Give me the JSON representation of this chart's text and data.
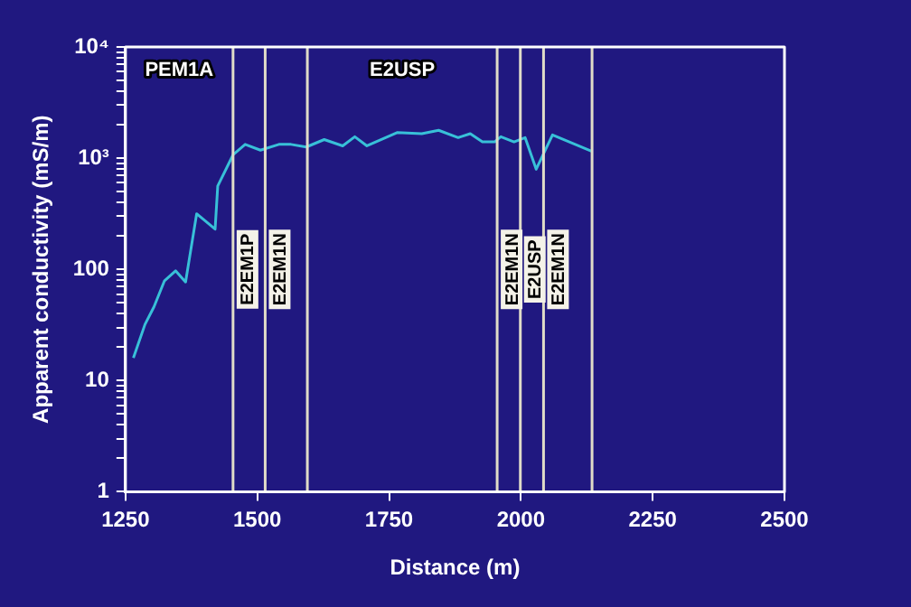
{
  "chart_data": {
    "type": "line",
    "xlabel": "Distance (m)",
    "ylabel": "Apparent conductivity (mS/m)",
    "x": [
      1265,
      1287,
      1304,
      1324,
      1345,
      1364,
      1385,
      1420,
      1425,
      1454,
      1477,
      1506,
      1541,
      1564,
      1593,
      1627,
      1662,
      1685,
      1708,
      1766,
      1812,
      1844,
      1881,
      1904,
      1927,
      1950,
      1962,
      1987,
      2008,
      2029,
      2060,
      2135
    ],
    "series": [
      {
        "color": "#38c0d8",
        "values": [
          16,
          32,
          46,
          79,
          97,
          77,
          316,
          230,
          562,
          1070,
          1330,
          1180,
          1330,
          1330,
          1260,
          1470,
          1290,
          1560,
          1290,
          1700,
          1660,
          1780,
          1530,
          1660,
          1400,
          1400,
          1560,
          1400,
          1530,
          795,
          1620,
          1150
        ]
      }
    ],
    "log": "y",
    "grid": false,
    "marker": "none",
    "line_style": "solid",
    "legend": false,
    "xlim": [
      1250,
      2500
    ],
    "xticks": [
      1250,
      1500,
      1750,
      2000,
      2250,
      2500
    ],
    "ylim": [
      1,
      10000
    ],
    "yticks": [
      1,
      {
        "value": 2,
        "label": null
      },
      {
        "value": 3,
        "label": null
      },
      {
        "value": 4,
        "label": null
      },
      {
        "value": 5,
        "label": null
      },
      {
        "value": 6,
        "label": null
      },
      {
        "value": 7,
        "label": null
      },
      {
        "value": 8,
        "label": null
      },
      {
        "value": 9,
        "label": null
      },
      10,
      {
        "value": 20,
        "label": null
      },
      {
        "value": 30,
        "label": null
      },
      {
        "value": 40,
        "label": null
      },
      {
        "value": 50,
        "label": null
      },
      {
        "value": 60,
        "label": null
      },
      {
        "value": 70,
        "label": null
      },
      {
        "value": 80,
        "label": null
      },
      {
        "value": 90,
        "label": null
      },
      100,
      {
        "value": 200,
        "label": null
      },
      {
        "value": 300,
        "label": null
      },
      {
        "value": 400,
        "label": null
      },
      {
        "value": 500,
        "label": null
      },
      {
        "value": 600,
        "label": null
      },
      {
        "value": 700,
        "label": null
      },
      {
        "value": 800,
        "label": null
      },
      {
        "value": 900,
        "label": null
      },
      {
        "value": 1000,
        "label": "10³"
      },
      {
        "value": 2000,
        "label": null
      },
      {
        "value": 3000,
        "label": null
      },
      {
        "value": 4000,
        "label": null
      },
      {
        "value": 5000,
        "label": null
      },
      {
        "value": 6000,
        "label": null
      },
      {
        "value": 7000,
        "label": null
      },
      {
        "value": 8000,
        "label": null
      },
      {
        "value": 9000,
        "label": null
      },
      {
        "value": 10000,
        "label": "10⁴"
      }
    ],
    "ref_lines": [
      {
        "axis": "x",
        "value": 1454,
        "label": "E2EM1P",
        "color": "#e0dcc8"
      },
      {
        "axis": "x",
        "value": 1515,
        "label": "E2EM1N",
        "color": "#e0dcc8"
      },
      {
        "axis": "x",
        "value": 1595,
        "color": "#e0dcc8"
      },
      {
        "axis": "x",
        "value": 1955,
        "label": "E2EM1N",
        "color": "#e0dcc8"
      },
      {
        "axis": "x",
        "value": 1999,
        "label": "E2USP",
        "color": "#e0dcc8"
      },
      {
        "axis": "x",
        "value": 2043,
        "label": "E2EM1N",
        "color": "#e0dcc8"
      },
      {
        "axis": "x",
        "value": 2135,
        "color": "#e0dcc8"
      }
    ],
    "annotations": [
      "PEM1A",
      "E2USP"
    ]
  }
}
